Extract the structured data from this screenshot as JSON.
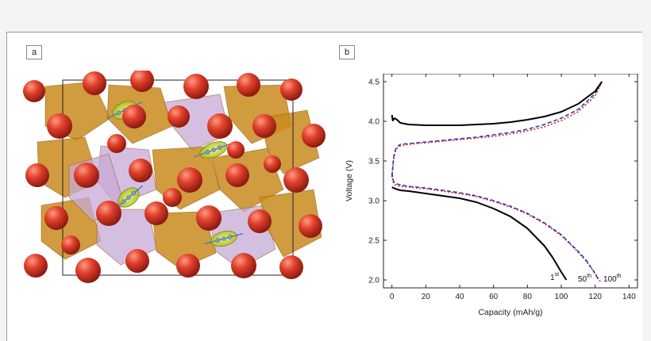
{
  "panels": {
    "a": {
      "label": "a"
    },
    "b": {
      "label": "b"
    }
  },
  "colors": {
    "oxygen": "#d8392b",
    "polyhedron_orange": "#c98a1e",
    "polyhedron_purple": "#c7a9d6",
    "ion_green": "#d8dd3a",
    "cycle_1": "#000000",
    "cycle_50": "#2a3fb0",
    "cycle_100": "#e02020"
  },
  "chart_data": {
    "type": "line",
    "xlabel": "Capacity (mAh/g)",
    "ylabel": "Voltage (V)",
    "xlim": [
      -5,
      145
    ],
    "ylim": [
      1.9,
      4.6
    ],
    "xticks": [
      0,
      20,
      40,
      60,
      80,
      100,
      120,
      140
    ],
    "yticks": [
      2.0,
      2.5,
      3.0,
      3.5,
      4.0,
      4.5
    ],
    "series": [
      {
        "cycle": "1",
        "sup": "st",
        "style": "solid",
        "charge": {
          "x": [
            0,
            0.5,
            1.5,
            3,
            5,
            10,
            20,
            30,
            40,
            50,
            60,
            70,
            80,
            90,
            100,
            110,
            120,
            124
          ],
          "y": [
            4.08,
            4.01,
            4.04,
            4.02,
            3.98,
            3.96,
            3.95,
            3.95,
            3.95,
            3.96,
            3.97,
            3.99,
            4.02,
            4.06,
            4.12,
            4.22,
            4.38,
            4.5
          ]
        },
        "discharge": {
          "x": [
            0,
            2,
            5,
            10,
            20,
            30,
            40,
            50,
            60,
            70,
            80,
            90,
            95,
            100,
            103
          ],
          "y": [
            3.17,
            3.15,
            3.13,
            3.12,
            3.09,
            3.06,
            3.03,
            2.98,
            2.9,
            2.8,
            2.65,
            2.43,
            2.28,
            2.1,
            2.0
          ]
        }
      },
      {
        "cycle": "50",
        "sup": "th",
        "style": "dashed",
        "charge": {
          "x": [
            0,
            0.5,
            1,
            2,
            3,
            5,
            10,
            20,
            30,
            40,
            50,
            60,
            70,
            80,
            90,
            100,
            110,
            120,
            124
          ],
          "y": [
            3.3,
            3.42,
            3.55,
            3.64,
            3.68,
            3.71,
            3.72,
            3.74,
            3.76,
            3.78,
            3.8,
            3.83,
            3.86,
            3.9,
            3.96,
            4.04,
            4.15,
            4.35,
            4.5
          ]
        },
        "discharge": {
          "x": [
            0,
            0.5,
            1,
            2,
            3,
            5,
            10,
            20,
            30,
            40,
            50,
            60,
            70,
            80,
            90,
            100,
            110,
            115,
            120,
            122
          ],
          "y": [
            3.35,
            3.28,
            3.24,
            3.22,
            3.21,
            3.2,
            3.18,
            3.16,
            3.13,
            3.1,
            3.06,
            3.0,
            2.93,
            2.84,
            2.72,
            2.57,
            2.36,
            2.24,
            2.08,
            2.0
          ]
        }
      },
      {
        "cycle": "100",
        "sup": "th",
        "style": "dotted",
        "charge": {
          "x": [
            0,
            0.5,
            1,
            2,
            3,
            5,
            10,
            20,
            30,
            40,
            50,
            60,
            70,
            80,
            90,
            100,
            110,
            120,
            124
          ],
          "y": [
            3.3,
            3.4,
            3.52,
            3.62,
            3.66,
            3.69,
            3.71,
            3.73,
            3.75,
            3.77,
            3.79,
            3.81,
            3.84,
            3.88,
            3.93,
            4.01,
            4.12,
            4.32,
            4.5
          ]
        },
        "discharge": {
          "x": [
            0,
            0.5,
            1,
            2,
            3,
            5,
            10,
            20,
            30,
            40,
            50,
            60,
            70,
            80,
            90,
            100,
            110,
            115,
            120,
            123
          ],
          "y": [
            3.33,
            3.26,
            3.22,
            3.2,
            3.19,
            3.18,
            3.17,
            3.15,
            3.12,
            3.09,
            3.05,
            2.99,
            2.92,
            2.83,
            2.71,
            2.56,
            2.35,
            2.23,
            2.08,
            1.98
          ]
        }
      }
    ]
  }
}
